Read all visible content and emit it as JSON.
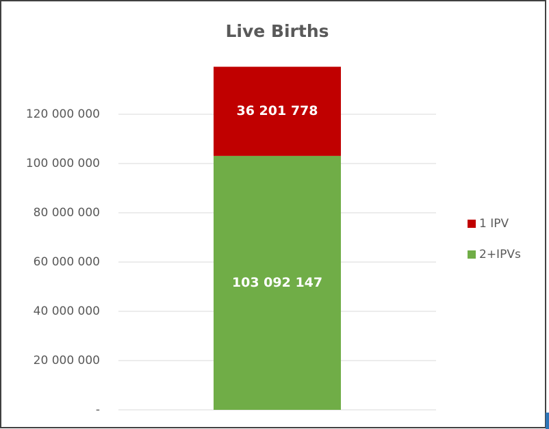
{
  "chart_data": {
    "type": "stacked_bar",
    "title": "Live Births",
    "categories": [
      null
    ],
    "series": [
      {
        "name": "2+IPVs",
        "color": "#70ad47",
        "values": [
          103092147
        ],
        "value_labels": [
          "103 092 147"
        ]
      },
      {
        "name": "1 IPV",
        "color": "#c00000",
        "values": [
          36201778
        ],
        "value_labels": [
          "36 201 778"
        ]
      }
    ],
    "ylim": [
      0,
      140000000
    ],
    "yticks": [
      {
        "value": 0,
        "label": "-"
      },
      {
        "value": 20000000,
        "label": "20 000 000"
      },
      {
        "value": 40000000,
        "label": "40 000 000"
      },
      {
        "value": 60000000,
        "label": "60 000 000"
      },
      {
        "value": 80000000,
        "label": "80 000 000"
      },
      {
        "value": 100000000,
        "label": "100 000 000"
      },
      {
        "value": 120000000,
        "label": "120 000 000"
      }
    ],
    "grid": true,
    "legend": "right"
  }
}
